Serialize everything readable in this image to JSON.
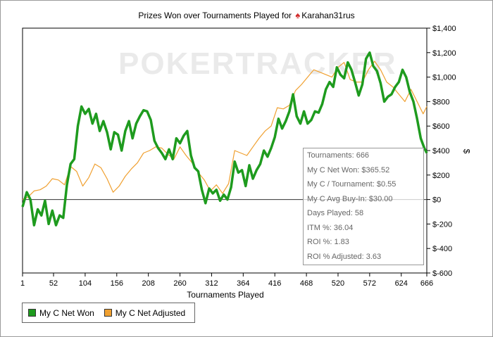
{
  "title": {
    "prefix": "Prizes Won over Tournaments Played for",
    "spade": "♠",
    "player": "Karahan31rus"
  },
  "watermark": "POKERTRACKER",
  "colors": {
    "net_won": "#1e9b1e",
    "net_adjusted": "#f0a030",
    "axis": "#000000"
  },
  "legend": {
    "items": [
      {
        "label": "My C Net Won",
        "color": "#1e9b1e"
      },
      {
        "label": "My C Net Adjusted",
        "color": "#f0a030"
      }
    ]
  },
  "info": {
    "rows": [
      "Tournaments: 666",
      "My C Net Won: $365.52",
      "My C / Tournament: $0.55",
      "My C Avg Buy-In: $30.00",
      "Days Played: 58",
      "ITM %: 36.04",
      "ROI %: 1.83",
      "ROI % Adjusted: 3.63"
    ]
  },
  "chart_data": {
    "type": "line",
    "title": "Prizes Won over Tournaments Played for Karahan31rus",
    "xlabel": "Tournaments Played",
    "ylabel": "$",
    "xlim": [
      1,
      666
    ],
    "ylim": [
      -600,
      1400
    ],
    "x_ticks": [
      1,
      52,
      104,
      156,
      208,
      260,
      312,
      364,
      416,
      468,
      520,
      572,
      624,
      666
    ],
    "y_ticks": [
      {
        "v": 1400,
        "label": "$1,400"
      },
      {
        "v": 1200,
        "label": "$1,200"
      },
      {
        "v": 1000,
        "label": "$1,000"
      },
      {
        "v": 800,
        "label": "$800"
      },
      {
        "v": 600,
        "label": "$600"
      },
      {
        "v": 400,
        "label": "$400"
      },
      {
        "v": 200,
        "label": "$200"
      },
      {
        "v": 0,
        "label": "$0"
      },
      {
        "v": -200,
        "label": "$-200"
      },
      {
        "v": -400,
        "label": "$-400"
      },
      {
        "v": -600,
        "label": "$-600"
      }
    ],
    "grid": false,
    "legend_position": "bottom-left",
    "series": [
      {
        "name": "My C Net Won",
        "color": "#1e9b1e",
        "points": [
          [
            1,
            -60
          ],
          [
            8,
            60
          ],
          [
            14,
            0
          ],
          [
            20,
            -210
          ],
          [
            26,
            -80
          ],
          [
            32,
            -130
          ],
          [
            38,
            -10
          ],
          [
            44,
            -200
          ],
          [
            50,
            -90
          ],
          [
            56,
            -210
          ],
          [
            62,
            -130
          ],
          [
            68,
            -150
          ],
          [
            74,
            120
          ],
          [
            80,
            290
          ],
          [
            86,
            330
          ],
          [
            92,
            600
          ],
          [
            98,
            760
          ],
          [
            104,
            700
          ],
          [
            110,
            740
          ],
          [
            116,
            620
          ],
          [
            122,
            700
          ],
          [
            128,
            560
          ],
          [
            134,
            640
          ],
          [
            140,
            550
          ],
          [
            146,
            410
          ],
          [
            152,
            550
          ],
          [
            158,
            530
          ],
          [
            164,
            400
          ],
          [
            170,
            560
          ],
          [
            176,
            640
          ],
          [
            182,
            500
          ],
          [
            188,
            620
          ],
          [
            194,
            680
          ],
          [
            200,
            730
          ],
          [
            206,
            720
          ],
          [
            212,
            650
          ],
          [
            218,
            480
          ],
          [
            224,
            420
          ],
          [
            230,
            380
          ],
          [
            236,
            330
          ],
          [
            242,
            410
          ],
          [
            248,
            330
          ],
          [
            254,
            500
          ],
          [
            260,
            460
          ],
          [
            266,
            520
          ],
          [
            272,
            560
          ],
          [
            278,
            360
          ],
          [
            284,
            260
          ],
          [
            290,
            230
          ],
          [
            296,
            80
          ],
          [
            302,
            -30
          ],
          [
            308,
            90
          ],
          [
            314,
            50
          ],
          [
            320,
            80
          ],
          [
            326,
            -10
          ],
          [
            332,
            40
          ],
          [
            338,
            0
          ],
          [
            344,
            100
          ],
          [
            350,
            310
          ],
          [
            356,
            220
          ],
          [
            362,
            240
          ],
          [
            368,
            110
          ],
          [
            374,
            280
          ],
          [
            380,
            170
          ],
          [
            386,
            240
          ],
          [
            392,
            290
          ],
          [
            398,
            400
          ],
          [
            404,
            350
          ],
          [
            410,
            420
          ],
          [
            416,
            510
          ],
          [
            422,
            660
          ],
          [
            428,
            580
          ],
          [
            434,
            640
          ],
          [
            440,
            720
          ],
          [
            446,
            860
          ],
          [
            452,
            680
          ],
          [
            458,
            620
          ],
          [
            464,
            720
          ],
          [
            470,
            620
          ],
          [
            476,
            650
          ],
          [
            482,
            720
          ],
          [
            488,
            710
          ],
          [
            494,
            780
          ],
          [
            500,
            900
          ],
          [
            506,
            960
          ],
          [
            512,
            920
          ],
          [
            518,
            1080
          ],
          [
            524,
            1020
          ],
          [
            530,
            990
          ],
          [
            536,
            1120
          ],
          [
            542,
            1060
          ],
          [
            548,
            960
          ],
          [
            554,
            850
          ],
          [
            560,
            940
          ],
          [
            566,
            1150
          ],
          [
            572,
            1200
          ],
          [
            578,
            1090
          ],
          [
            584,
            1050
          ],
          [
            590,
            950
          ],
          [
            596,
            800
          ],
          [
            602,
            840
          ],
          [
            608,
            860
          ],
          [
            614,
            920
          ],
          [
            620,
            960
          ],
          [
            626,
            1060
          ],
          [
            632,
            1000
          ],
          [
            638,
            880
          ],
          [
            644,
            800
          ],
          [
            650,
            660
          ],
          [
            656,
            500
          ],
          [
            662,
            420
          ],
          [
            666,
            380
          ]
        ]
      },
      {
        "name": "My C Net Adjusted",
        "color": "#f0a030",
        "points": [
          [
            1,
            0
          ],
          [
            10,
            20
          ],
          [
            20,
            70
          ],
          [
            30,
            80
          ],
          [
            40,
            110
          ],
          [
            50,
            170
          ],
          [
            60,
            160
          ],
          [
            70,
            120
          ],
          [
            80,
            270
          ],
          [
            90,
            230
          ],
          [
            100,
            110
          ],
          [
            110,
            180
          ],
          [
            120,
            290
          ],
          [
            130,
            260
          ],
          [
            140,
            170
          ],
          [
            150,
            60
          ],
          [
            160,
            110
          ],
          [
            170,
            190
          ],
          [
            180,
            250
          ],
          [
            190,
            300
          ],
          [
            200,
            380
          ],
          [
            210,
            400
          ],
          [
            220,
            430
          ],
          [
            230,
            420
          ],
          [
            240,
            370
          ],
          [
            250,
            330
          ],
          [
            260,
            430
          ],
          [
            270,
            360
          ],
          [
            280,
            300
          ],
          [
            290,
            220
          ],
          [
            300,
            160
          ],
          [
            310,
            70
          ],
          [
            320,
            120
          ],
          [
            330,
            50
          ],
          [
            340,
            130
          ],
          [
            350,
            400
          ],
          [
            360,
            380
          ],
          [
            370,
            360
          ],
          [
            380,
            430
          ],
          [
            390,
            500
          ],
          [
            400,
            560
          ],
          [
            410,
            600
          ],
          [
            420,
            750
          ],
          [
            430,
            740
          ],
          [
            440,
            770
          ],
          [
            450,
            890
          ],
          [
            460,
            940
          ],
          [
            470,
            1000
          ],
          [
            480,
            1060
          ],
          [
            490,
            1040
          ],
          [
            500,
            1020
          ],
          [
            510,
            1000
          ],
          [
            520,
            1080
          ],
          [
            530,
            1120
          ],
          [
            540,
            980
          ],
          [
            550,
            960
          ],
          [
            560,
            960
          ],
          [
            570,
            1060
          ],
          [
            580,
            1130
          ],
          [
            590,
            1060
          ],
          [
            600,
            960
          ],
          [
            610,
            920
          ],
          [
            620,
            860
          ],
          [
            630,
            800
          ],
          [
            640,
            900
          ],
          [
            650,
            800
          ],
          [
            660,
            700
          ],
          [
            666,
            760
          ]
        ]
      }
    ]
  }
}
